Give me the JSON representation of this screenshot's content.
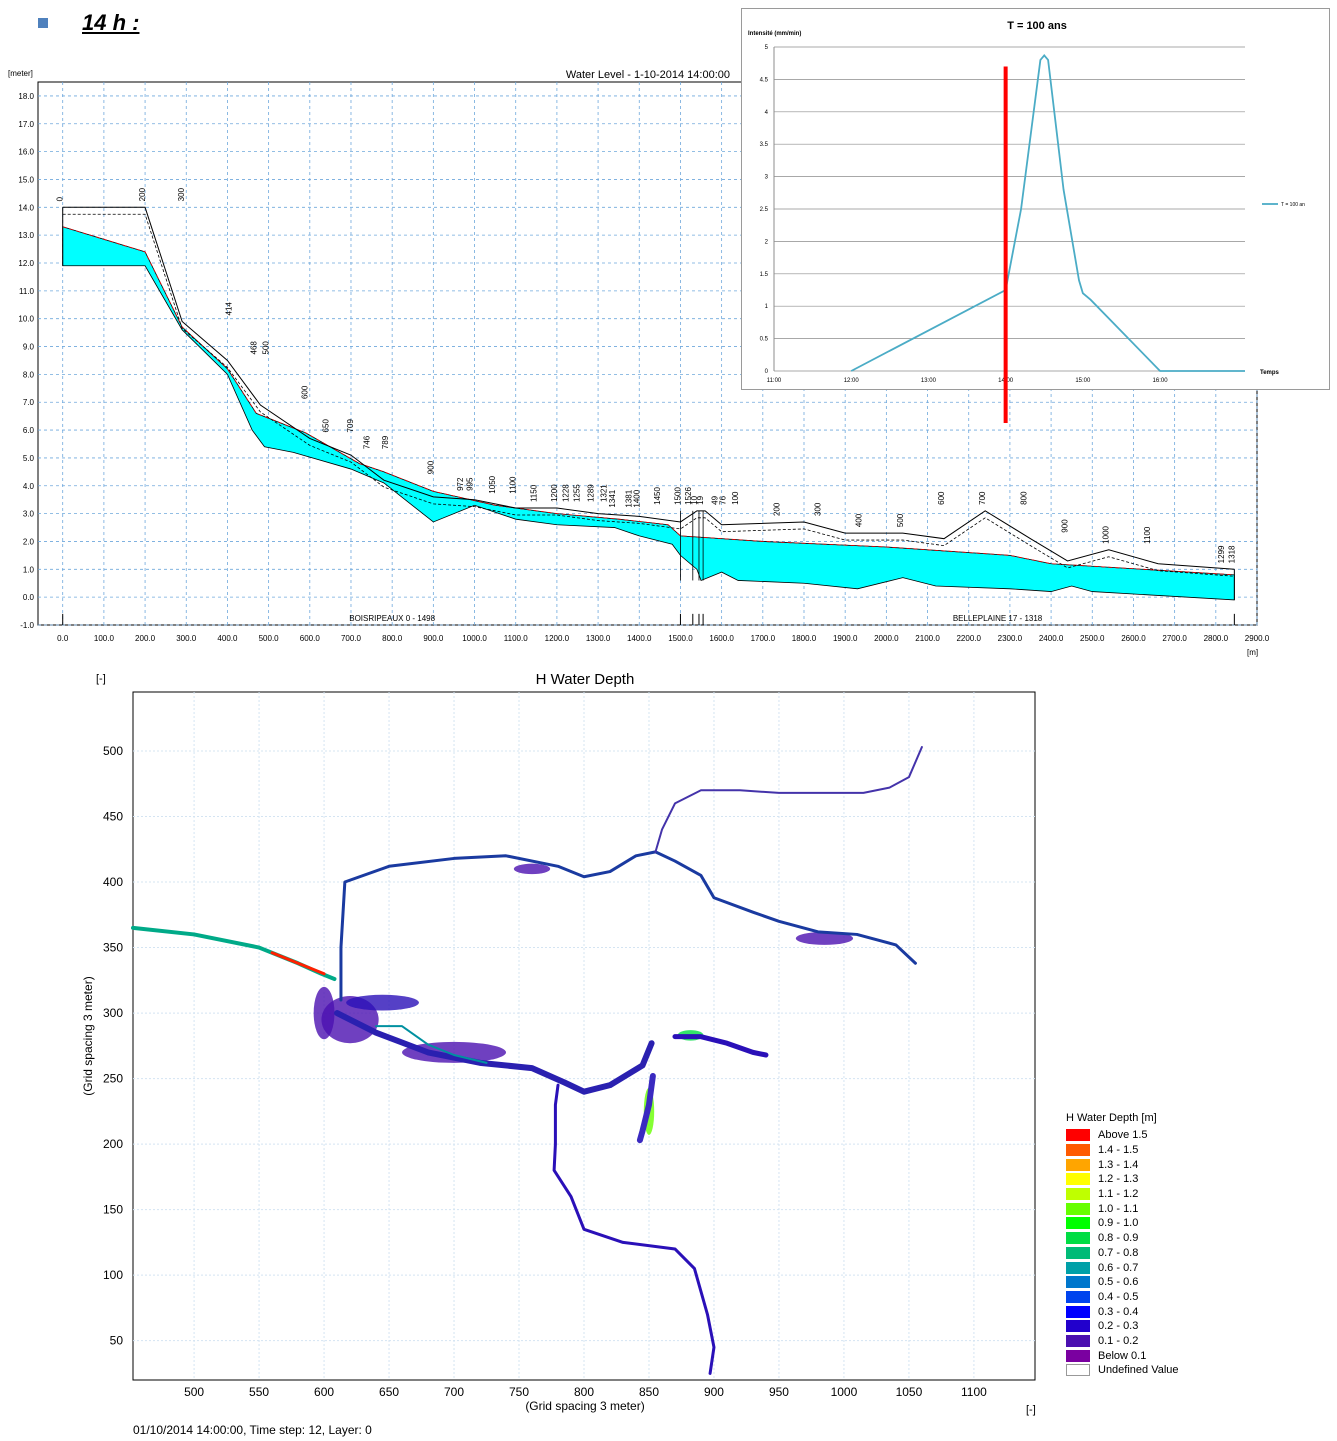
{
  "heading": {
    "text": "14 h :"
  },
  "chart_data": [
    {
      "type": "area",
      "title": "Water Level - 1-10-2014 14:00:00",
      "ylabel": "[meter]",
      "xlabel": "[m]",
      "xlim": [
        -60,
        2900
      ],
      "ylim": [
        -1.0,
        18.5
      ],
      "x_ticks": [
        0,
        100,
        200,
        300,
        400,
        500,
        600,
        700,
        800,
        900,
        1000,
        1100,
        1200,
        1300,
        1400,
        1500,
        1600,
        1700,
        1800,
        1900,
        2000,
        2100,
        2200,
        2300,
        2400,
        2500,
        2600,
        2700,
        2800,
        2900
      ],
      "x_tick_labels": [
        "0.0",
        "100.0",
        "200.0",
        "300.0",
        "400.0",
        "500.0",
        "600.0",
        "700.0",
        "800.0",
        "900.0",
        "1000.0",
        "1100.0",
        "1200.0",
        "1300.0",
        "1400.0",
        "1500.0",
        "1600.0",
        "1700.0",
        "1800.0",
        "1900.0",
        "2000.0",
        "2100.0",
        "2200.0",
        "2300.0",
        "2400.0",
        "2500.0",
        "2600.0",
        "2700.0",
        "2800.0",
        "2900.0"
      ],
      "y_ticks": [
        -1,
        0,
        1,
        2,
        3,
        4,
        5,
        6,
        7,
        8,
        9,
        10,
        11,
        12,
        13,
        14,
        15,
        16,
        17,
        18
      ],
      "y_tick_labels": [
        "-1.0",
        "0.0",
        "1.0",
        "2.0",
        "3.0",
        "4.0",
        "5.0",
        "6.0",
        "7.0",
        "8.0",
        "9.0",
        "10.0",
        "11.0",
        "12.0",
        "13.0",
        "14.0",
        "15.0",
        "16.0",
        "17.0",
        "18.0"
      ],
      "water_surface": [
        [
          0,
          13.3
        ],
        [
          200,
          12.4
        ],
        [
          290,
          9.7
        ],
        [
          400,
          8.2
        ],
        [
          470,
          6.6
        ],
        [
          590,
          5.9
        ],
        [
          720,
          4.8
        ],
        [
          780,
          4.5
        ],
        [
          900,
          3.8
        ],
        [
          1050,
          3.3
        ],
        [
          1200,
          3.0
        ],
        [
          1350,
          2.8
        ],
        [
          1470,
          2.6
        ],
        [
          1500,
          2.2
        ],
        [
          1700,
          2.0
        ],
        [
          2000,
          1.8
        ],
        [
          2300,
          1.5
        ],
        [
          2400,
          1.2
        ],
        [
          2845,
          0.8
        ]
      ],
      "bed": [
        [
          0,
          11.9
        ],
        [
          200,
          11.9
        ],
        [
          290,
          9.6
        ],
        [
          400,
          8.0
        ],
        [
          460,
          6.0
        ],
        [
          490,
          5.4
        ],
        [
          560,
          5.2
        ],
        [
          700,
          4.6
        ],
        [
          780,
          4.1
        ],
        [
          900,
          2.7
        ],
        [
          1000,
          3.3
        ],
        [
          1100,
          2.8
        ],
        [
          1200,
          2.6
        ],
        [
          1340,
          2.5
        ],
        [
          1400,
          2.2
        ],
        [
          1480,
          1.9
        ],
        [
          1500,
          1.5
        ],
        [
          1540,
          1.0
        ],
        [
          1550,
          0.6
        ],
        [
          1600,
          0.9
        ],
        [
          1640,
          0.6
        ],
        [
          1800,
          0.5
        ],
        [
          1930,
          0.3
        ],
        [
          2040,
          0.7
        ],
        [
          2120,
          0.4
        ],
        [
          2300,
          0.3
        ],
        [
          2400,
          0.2
        ],
        [
          2450,
          0.4
        ],
        [
          2500,
          0.2
        ],
        [
          2845,
          -0.1
        ]
      ],
      "bank": [
        [
          0,
          14.0
        ],
        [
          200,
          14.0
        ],
        [
          290,
          9.9
        ],
        [
          400,
          8.5
        ],
        [
          480,
          6.9
        ],
        [
          600,
          5.7
        ],
        [
          700,
          5.1
        ],
        [
          780,
          4.2
        ],
        [
          900,
          3.6
        ],
        [
          1000,
          3.5
        ],
        [
          1100,
          3.2
        ],
        [
          1200,
          3.2
        ],
        [
          1300,
          3.0
        ],
        [
          1400,
          2.9
        ],
        [
          1500,
          2.7
        ],
        [
          1540,
          3.1
        ],
        [
          1560,
          3.1
        ],
        [
          1600,
          2.6
        ],
        [
          1800,
          2.7
        ],
        [
          1900,
          2.3
        ],
        [
          2040,
          2.3
        ],
        [
          2140,
          2.1
        ],
        [
          2240,
          3.1
        ],
        [
          2350,
          2.1
        ],
        [
          2440,
          1.3
        ],
        [
          2540,
          1.7
        ],
        [
          2660,
          1.2
        ],
        [
          2845,
          1.0
        ]
      ],
      "chainage_labels": [
        {
          "x": 0,
          "t": "0"
        },
        {
          "x": 200,
          "t": "200"
        },
        {
          "x": 295,
          "t": "300"
        },
        {
          "x": 410,
          "t": "414"
        },
        {
          "x": 470,
          "t": "468"
        },
        {
          "x": 500,
          "t": "500"
        },
        {
          "x": 595,
          "t": "600"
        },
        {
          "x": 645,
          "t": "650"
        },
        {
          "x": 705,
          "t": "709"
        },
        {
          "x": 745,
          "t": "746"
        },
        {
          "x": 790,
          "t": "789"
        },
        {
          "x": 900,
          "t": "900"
        },
        {
          "x": 972,
          "t": "972"
        },
        {
          "x": 995,
          "t": "995"
        },
        {
          "x": 1050,
          "t": "1050"
        },
        {
          "x": 1100,
          "t": "1100"
        },
        {
          "x": 1150,
          "t": "1150"
        },
        {
          "x": 1200,
          "t": "1200"
        },
        {
          "x": 1228,
          "t": "1228"
        },
        {
          "x": 1255,
          "t": "1255"
        },
        {
          "x": 1289,
          "t": "1289"
        },
        {
          "x": 1321,
          "t": "1321"
        },
        {
          "x": 1341,
          "t": "1341"
        },
        {
          "x": 1381,
          "t": "1381"
        },
        {
          "x": 1400,
          "t": "1400"
        },
        {
          "x": 1450,
          "t": "1450"
        },
        {
          "x": 1500,
          "t": "1500"
        },
        {
          "x": 1526,
          "t": "1526"
        },
        {
          "x": 1540,
          "t": "10"
        },
        {
          "x": 1555,
          "t": "19"
        },
        {
          "x": 1590,
          "t": "49"
        },
        {
          "x": 1610,
          "t": "76"
        },
        {
          "x": 1640,
          "t": "100"
        },
        {
          "x": 1740,
          "t": "200"
        },
        {
          "x": 1840,
          "t": "300"
        },
        {
          "x": 1940,
          "t": "400"
        },
        {
          "x": 2040,
          "t": "500"
        },
        {
          "x": 2140,
          "t": "600"
        },
        {
          "x": 2240,
          "t": "700"
        },
        {
          "x": 2340,
          "t": "800"
        },
        {
          "x": 2440,
          "t": "900"
        },
        {
          "x": 2540,
          "t": "1000"
        },
        {
          "x": 2640,
          "t": "1100"
        },
        {
          "x": 2820,
          "t": "1299"
        },
        {
          "x": 2845,
          "t": "1318"
        }
      ],
      "branch_labels": [
        {
          "x": 800,
          "t": "BOISRIPEAUX  0 - 1498"
        },
        {
          "x": 2270,
          "t": "BELLEPLAINE  17 - 1318"
        }
      ]
    },
    {
      "type": "line",
      "title": "T = 100 ans",
      "ylabel": "Intensité (mm/min)",
      "xlabel": "Temps",
      "x_tick_labels": [
        "11:00",
        "12:00",
        "13:00",
        "14:00",
        "15:00",
        "16:00"
      ],
      "y_tick_labels": [
        "0",
        "0.5",
        "1",
        "1.5",
        "2",
        "2.5",
        "3",
        "3.5",
        "4",
        "4.5",
        "5"
      ],
      "ylim": [
        0,
        5
      ],
      "xlim_hours": [
        11,
        17.1
      ],
      "series": [
        {
          "name": "T = 100 an",
          "color": "#4bacc6",
          "x": [
            12.0,
            14.0,
            14.2,
            14.45,
            14.5,
            14.55,
            14.75,
            14.95,
            15.0,
            15.1,
            16.0,
            17.1
          ],
          "y": [
            0,
            1.25,
            2.5,
            4.8,
            4.87,
            4.8,
            2.8,
            1.4,
            1.2,
            1.1,
            0,
            0
          ]
        }
      ],
      "marker": {
        "x": 14.0,
        "color": "#ff0000"
      }
    },
    {
      "type": "heatmap",
      "title": "H Water Depth",
      "corner_label": "[-]",
      "xlabel": "(Grid spacing 3 meter)",
      "ylabel": "(Grid spacing 3 meter)",
      "x_unit": "[-]",
      "xlim": [
        453,
        1147
      ],
      "ylim": [
        20,
        545
      ],
      "x_ticks": [
        500,
        550,
        600,
        650,
        700,
        750,
        800,
        850,
        900,
        950,
        1000,
        1050,
        1100
      ],
      "y_ticks": [
        50,
        100,
        150,
        200,
        250,
        300,
        350,
        400,
        450,
        500
      ],
      "legend": {
        "title": "H Water Depth [m]",
        "items": [
          {
            "label": "Above 1.5",
            "color": "#ff0000"
          },
          {
            "label": "1.4 - 1.5",
            "color": "#ff5a00"
          },
          {
            "label": "1.3 - 1.4",
            "color": "#ffa500"
          },
          {
            "label": "1.2 - 1.3",
            "color": "#ffff00"
          },
          {
            "label": "1.1 - 1.2",
            "color": "#bfff00"
          },
          {
            "label": "1.0 - 1.1",
            "color": "#66ff00"
          },
          {
            "label": "0.9 - 1.0",
            "color": "#00ff00"
          },
          {
            "label": "0.8 - 0.9",
            "color": "#00dd44"
          },
          {
            "label": "0.7 - 0.8",
            "color": "#00bb77"
          },
          {
            "label": "0.6 - 0.7",
            "color": "#00a0a8"
          },
          {
            "label": "0.5 - 0.6",
            "color": "#0077cc"
          },
          {
            "label": "0.4 - 0.5",
            "color": "#0044ee"
          },
          {
            "label": "0.3 - 0.4",
            "color": "#0000ff"
          },
          {
            "label": "0.2 - 0.3",
            "color": "#2200cc"
          },
          {
            "label": "0.1 - 0.2",
            "color": "#4b10b0"
          },
          {
            "label": "Below 0.1",
            "color": "#7a00a0"
          },
          {
            "label": "Undefined Value",
            "color": "#ffffff"
          }
        ]
      },
      "footer": "01/10/2014 14:00:00, Time step: 12, Layer: 0",
      "channels": [
        {
          "pts": [
            [
              453,
              365
            ],
            [
              500,
              360
            ],
            [
              550,
              350
            ],
            [
              580,
              338
            ],
            [
              598,
              330
            ],
            [
              608,
              326
            ]
          ],
          "color": "#00aa88",
          "w": 4
        },
        {
          "pts": [
            [
              560,
              346
            ],
            [
              590,
              334
            ],
            [
              600,
              330
            ]
          ],
          "color": "#ff2000",
          "w": 3
        },
        {
          "pts": [
            [
              613,
              310
            ],
            [
              613,
              350
            ],
            [
              616,
              400
            ],
            [
              650,
              412
            ],
            [
              700,
              418
            ],
            [
              740,
              420
            ],
            [
              780,
              412
            ],
            [
              800,
              404
            ],
            [
              820,
              408
            ],
            [
              840,
              420
            ],
            [
              855,
              423
            ],
            [
              870,
              416
            ],
            [
              890,
              405
            ],
            [
              900,
              388
            ],
            [
              930,
              377
            ],
            [
              950,
              370
            ],
            [
              980,
              362
            ],
            [
              1010,
              360
            ],
            [
              1040,
              352
            ],
            [
              1055,
              338
            ]
          ],
          "color": "#1a3aa0",
          "w": 3
        },
        {
          "pts": [
            [
              855,
              423
            ],
            [
              860,
              440
            ],
            [
              870,
              460
            ],
            [
              890,
              470
            ],
            [
              920,
              470
            ],
            [
              950,
              468
            ],
            [
              990,
              468
            ],
            [
              1015,
              468
            ],
            [
              1035,
              472
            ],
            [
              1050,
              480
            ],
            [
              1060,
              503
            ]
          ],
          "color": "#4433aa",
          "w": 2
        },
        {
          "pts": [
            [
              610,
              300
            ],
            [
              640,
              285
            ],
            [
              680,
              270
            ],
            [
              720,
              262
            ],
            [
              760,
              258
            ],
            [
              785,
              247
            ],
            [
              800,
              240
            ],
            [
              820,
              245
            ],
            [
              845,
              260
            ],
            [
              852,
              277
            ]
          ],
          "color": "#2a20b0",
          "w": 6
        },
        {
          "pts": [
            [
              640,
              290
            ],
            [
              660,
              290
            ],
            [
              680,
              276
            ],
            [
              700,
              268
            ],
            [
              725,
              262
            ]
          ],
          "color": "#0090a0",
          "w": 2
        },
        {
          "pts": [
            [
              780,
              245
            ],
            [
              778,
              230
            ],
            [
              778,
              200
            ],
            [
              777,
              180
            ],
            [
              790,
              160
            ],
            [
              800,
              135
            ],
            [
              830,
              125
            ],
            [
              870,
              120
            ],
            [
              885,
              105
            ],
            [
              895,
              70
            ],
            [
              900,
              45
            ],
            [
              897,
              25
            ]
          ],
          "color": "#2a10b8",
          "w": 3
        },
        {
          "pts": [
            [
              870,
              282
            ],
            [
              890,
              282
            ],
            [
              910,
              277
            ],
            [
              930,
              270
            ],
            [
              940,
              268
            ]
          ],
          "color": "#2a10b8",
          "w": 5
        },
        {
          "pts": [
            [
              853,
              252
            ],
            [
              850,
              230
            ],
            [
              845,
              210
            ],
            [
              843,
              203
            ]
          ],
          "color": "#3a2ac0",
          "w": 6
        }
      ],
      "blobs": [
        {
          "c": [
            620,
            295
          ],
          "r": [
            22,
            18
          ],
          "color": "#4b10b0"
        },
        {
          "c": [
            600,
            300
          ],
          "r": [
            8,
            20
          ],
          "color": "#4b10b0"
        },
        {
          "c": [
            645,
            308
          ],
          "r": [
            28,
            6
          ],
          "color": "#2a10b8"
        },
        {
          "c": [
            700,
            270
          ],
          "r": [
            40,
            8
          ],
          "color": "#4b10b0"
        },
        {
          "c": [
            850,
            225
          ],
          "r": [
            4,
            18
          ],
          "color": "#66ff00"
        },
        {
          "c": [
            882,
            283
          ],
          "r": [
            10,
            4
          ],
          "color": "#00dd44"
        },
        {
          "c": [
            760,
            410
          ],
          "r": [
            14,
            4
          ],
          "color": "#4b10b0"
        },
        {
          "c": [
            985,
            357
          ],
          "r": [
            22,
            5
          ],
          "color": "#4b10b0"
        }
      ]
    }
  ]
}
